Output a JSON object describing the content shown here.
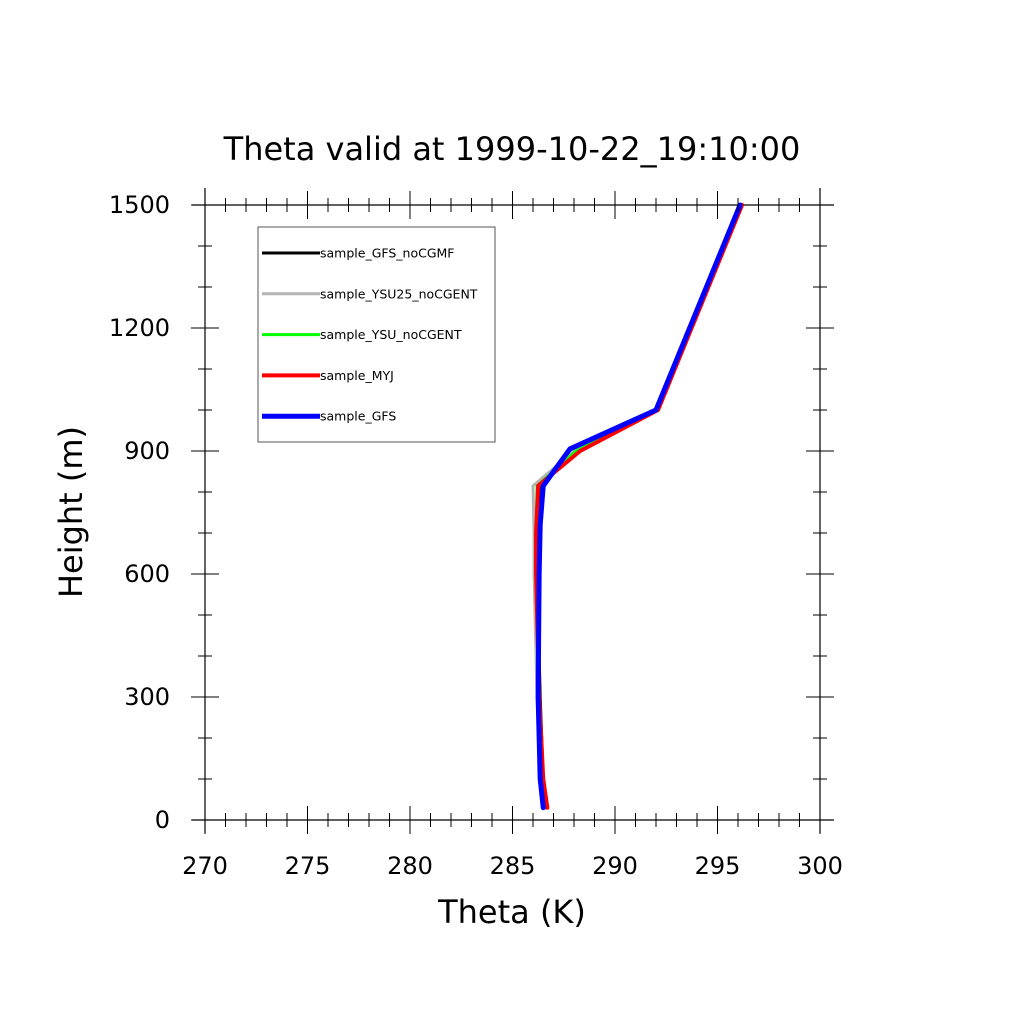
{
  "chart_data": {
    "type": "line",
    "title": "Theta valid at 1999-10-22_19:10:00",
    "xlabel": "Theta (K)",
    "ylabel": "Height (m)",
    "xlim": [
      270,
      300
    ],
    "ylim": [
      0,
      1500
    ],
    "x_ticks": [
      "270",
      "275",
      "280",
      "285",
      "290",
      "295",
      "300"
    ],
    "y_ticks": [
      "0",
      "300",
      "600",
      "900",
      "1200",
      "1500"
    ],
    "legend_position": "top-left",
    "grid": false,
    "series": [
      {
        "name": "sample_GFS_noCGMF",
        "color": "#000000",
        "width": 3,
        "x": [
          286.6,
          286.5,
          286.35,
          286.2,
          286.2,
          286.3,
          288.2,
          292.1,
          296.2
        ],
        "y": [
          30,
          100,
          300,
          600,
          700,
          815,
          900,
          1000,
          1500
        ]
      },
      {
        "name": "sample_YSU25_noCGENT",
        "color": "#b4b4b4",
        "width": 3,
        "x": [
          286.5,
          286.4,
          286.2,
          286.05,
          286.05,
          286.0,
          288.0,
          292.0,
          296.1
        ],
        "y": [
          30,
          100,
          300,
          600,
          700,
          815,
          900,
          1000,
          1500
        ]
      },
      {
        "name": "sample_YSU_noCGENT",
        "color": "#00ff00",
        "width": 3,
        "x": [
          286.55,
          286.45,
          286.3,
          286.15,
          286.15,
          286.2,
          288.1,
          292.05,
          296.15
        ],
        "y": [
          30,
          100,
          300,
          600,
          700,
          815,
          900,
          1000,
          1500
        ]
      },
      {
        "name": "sample_MYJ",
        "color": "#ff0000",
        "width": 4,
        "x": [
          286.7,
          286.5,
          286.3,
          286.15,
          286.15,
          286.25,
          288.3,
          292.1,
          296.2
        ],
        "y": [
          30,
          100,
          300,
          600,
          700,
          815,
          900,
          1000,
          1500
        ]
      },
      {
        "name": "sample_GFS",
        "color": "#0000ff",
        "width": 5,
        "x": [
          286.5,
          286.35,
          286.25,
          286.3,
          286.35,
          286.5,
          287.8,
          292.0,
          296.1
        ],
        "y": [
          30,
          100,
          300,
          600,
          720,
          815,
          905,
          1000,
          1500
        ]
      }
    ]
  }
}
